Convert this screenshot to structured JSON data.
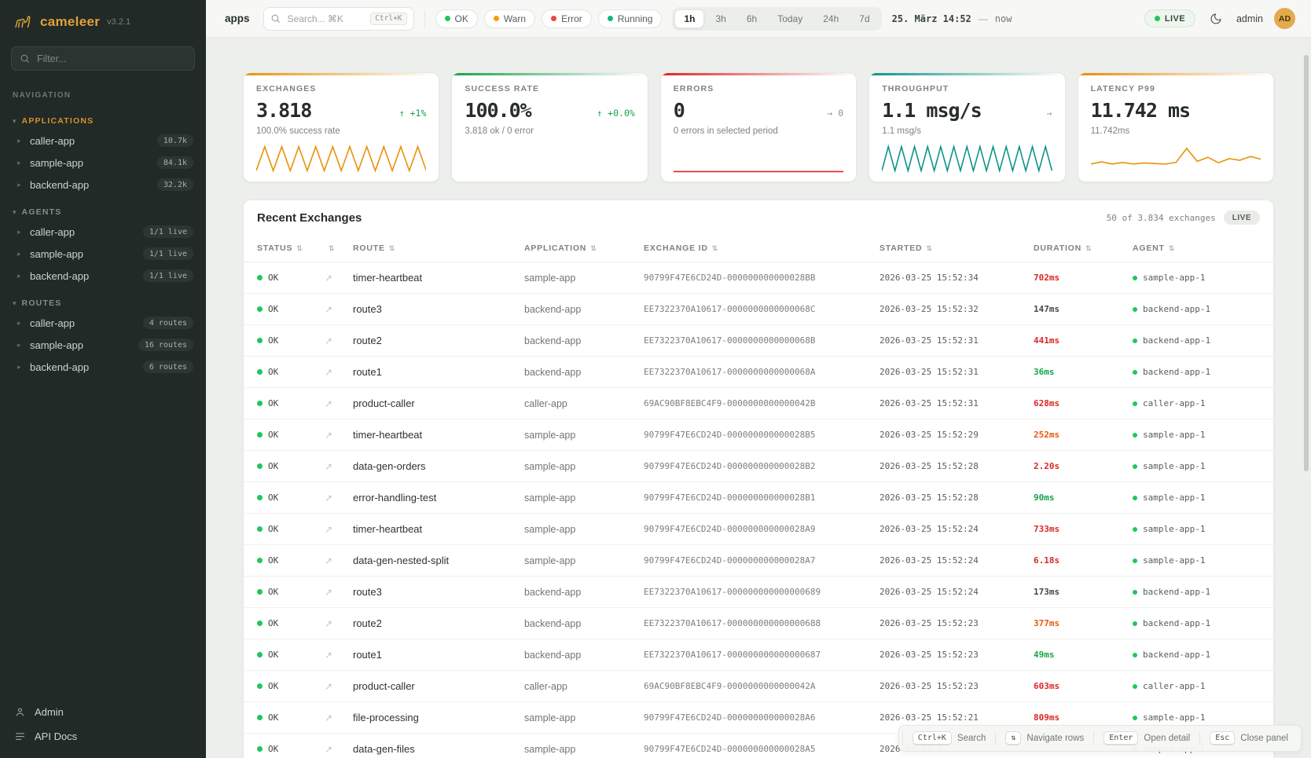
{
  "app": {
    "brand": "cameleer",
    "version": "v3.2.1"
  },
  "icons": {
    "caret_down": "▾",
    "caret_right": "▸",
    "sort": "⇅",
    "open": "↗"
  },
  "sidebar": {
    "filter_placeholder": "Filter...",
    "nav_label": "NAVIGATION",
    "sections": [
      {
        "title": "APPLICATIONS",
        "items": [
          {
            "label": "caller-app",
            "badge": "10.7k"
          },
          {
            "label": "sample-app",
            "badge": "84.1k"
          },
          {
            "label": "backend-app",
            "badge": "32.2k"
          }
        ]
      },
      {
        "title": "AGENTS",
        "items": [
          {
            "label": "caller-app",
            "badge": "1/1 live"
          },
          {
            "label": "sample-app",
            "badge": "1/1 live"
          },
          {
            "label": "backend-app",
            "badge": "1/1 live"
          }
        ]
      },
      {
        "title": "ROUTES",
        "items": [
          {
            "label": "caller-app",
            "badge": "4 routes"
          },
          {
            "label": "sample-app",
            "badge": "16 routes"
          },
          {
            "label": "backend-app",
            "badge": "6 routes"
          }
        ]
      }
    ],
    "footer": [
      {
        "label": "Admin"
      },
      {
        "label": "API Docs"
      }
    ]
  },
  "topbar": {
    "page_label": "apps",
    "search_placeholder": "Search... ⌘K",
    "search_kbd": "Ctrl+K",
    "status_chips": [
      {
        "label": "OK",
        "color": "#22c55e"
      },
      {
        "label": "Warn",
        "color": "#f59e0b"
      },
      {
        "label": "Error",
        "color": "#ef4444"
      },
      {
        "label": "Running",
        "color": "#10b981"
      }
    ],
    "time_ranges": [
      {
        "label": "1h",
        "active": true
      },
      {
        "label": "3h"
      },
      {
        "label": "6h"
      },
      {
        "label": "Today"
      },
      {
        "label": "24h"
      },
      {
        "label": "7d"
      }
    ],
    "date_label": "25. März 14:52",
    "date_sep": "—",
    "date_now": "now",
    "live_label": "LIVE",
    "user": "admin",
    "avatar": "AD"
  },
  "cards": [
    {
      "title": "EXCHANGES",
      "value": "3.818",
      "trend": "↑ +1%",
      "trend_color": "#16a34a",
      "subtitle": "100.0% success rate",
      "accent": "#e8930c",
      "spark": {
        "color": "#e8930c",
        "values": [
          0.05,
          0.95,
          0.05,
          0.95,
          0.05,
          0.95,
          0.05,
          0.95,
          0.05,
          0.95,
          0.05,
          0.95,
          0.05,
          0.95,
          0.05,
          0.95,
          0.05,
          0.95,
          0.05,
          0.95,
          0.05
        ]
      }
    },
    {
      "title": "SUCCESS RATE",
      "value": "100.0%",
      "trend": "↑ +0.0%",
      "trend_color": "#16a34a",
      "subtitle": "3.818 ok / 0 error",
      "accent": "#16a34a",
      "spark": null
    },
    {
      "title": "ERRORS",
      "value": "0",
      "trend": "→ 0",
      "trend_color": "#8a948d",
      "subtitle": "0 errors in selected period",
      "accent": "#dc2626",
      "spark": {
        "color": "#dc2626",
        "values": [
          0.02,
          0.02
        ]
      }
    },
    {
      "title": "THROUGHPUT",
      "value": "1.1 msg/s",
      "trend": "→",
      "trend_color": "#8a948d",
      "subtitle": "1.1 msg/s",
      "accent": "#0d9488",
      "spark": {
        "color": "#0d9488",
        "values": [
          0.05,
          0.95,
          0.05,
          0.95,
          0.05,
          0.95,
          0.05,
          0.95,
          0.05,
          0.95,
          0.05,
          0.95,
          0.05,
          0.95,
          0.05,
          0.95,
          0.05,
          0.95,
          0.05,
          0.95,
          0.05,
          0.95,
          0.05,
          0.95,
          0.05,
          0.95,
          0.05
        ]
      }
    },
    {
      "title": "LATENCY P99",
      "value": "11.742 ms",
      "trend": "",
      "subtitle": "11.742ms",
      "accent": "#ea8c0c",
      "spark": {
        "color": "#e8930c",
        "values": [
          0.3,
          0.38,
          0.3,
          0.36,
          0.3,
          0.34,
          0.32,
          0.3,
          0.36,
          0.88,
          0.4,
          0.55,
          0.35,
          0.5,
          0.44,
          0.58,
          0.48
        ]
      }
    }
  ],
  "table": {
    "title": "Recent Exchanges",
    "count_label": "50 of 3.834 exchanges",
    "live_label": "LIVE",
    "columns": [
      "STATUS",
      "",
      "ROUTE",
      "APPLICATION",
      "EXCHANGE ID",
      "STARTED",
      "DURATION",
      "AGENT"
    ],
    "rows": [
      {
        "status": "OK",
        "route": "timer-heartbeat",
        "application": "sample-app",
        "exchange_id": "90799F47E6CD24D-000000000000028BB",
        "started": "2026-03-25 15:52:34",
        "duration": "702ms",
        "duration_color": "#dc2626",
        "agent": "sample-app-1"
      },
      {
        "status": "OK",
        "route": "route3",
        "application": "backend-app",
        "exchange_id": "EE7322370A10617-0000000000000068C",
        "started": "2026-03-25 15:52:32",
        "duration": "147ms",
        "duration_color": "#414b45",
        "agent": "backend-app-1"
      },
      {
        "status": "OK",
        "route": "route2",
        "application": "backend-app",
        "exchange_id": "EE7322370A10617-0000000000000068B",
        "started": "2026-03-25 15:52:31",
        "duration": "441ms",
        "duration_color": "#dc2626",
        "agent": "backend-app-1"
      },
      {
        "status": "OK",
        "route": "route1",
        "application": "backend-app",
        "exchange_id": "EE7322370A10617-0000000000000068A",
        "started": "2026-03-25 15:52:31",
        "duration": "36ms",
        "duration_color": "#16a34a",
        "agent": "backend-app-1"
      },
      {
        "status": "OK",
        "route": "product-caller",
        "application": "caller-app",
        "exchange_id": "69AC90BF8EBC4F9-0000000000000042B",
        "started": "2026-03-25 15:52:31",
        "duration": "628ms",
        "duration_color": "#dc2626",
        "agent": "caller-app-1"
      },
      {
        "status": "OK",
        "route": "timer-heartbeat",
        "application": "sample-app",
        "exchange_id": "90799F47E6CD24D-000000000000028B5",
        "started": "2026-03-25 15:52:29",
        "duration": "252ms",
        "duration_color": "#ea580c",
        "agent": "sample-app-1"
      },
      {
        "status": "OK",
        "route": "data-gen-orders",
        "application": "sample-app",
        "exchange_id": "90799F47E6CD24D-000000000000028B2",
        "started": "2026-03-25 15:52:28",
        "duration": "2.20s",
        "duration_color": "#dc2626",
        "agent": "sample-app-1"
      },
      {
        "status": "OK",
        "route": "error-handling-test",
        "application": "sample-app",
        "exchange_id": "90799F47E6CD24D-000000000000028B1",
        "started": "2026-03-25 15:52:28",
        "duration": "90ms",
        "duration_color": "#16a34a",
        "agent": "sample-app-1"
      },
      {
        "status": "OK",
        "route": "timer-heartbeat",
        "application": "sample-app",
        "exchange_id": "90799F47E6CD24D-000000000000028A9",
        "started": "2026-03-25 15:52:24",
        "duration": "733ms",
        "duration_color": "#dc2626",
        "agent": "sample-app-1"
      },
      {
        "status": "OK",
        "route": "data-gen-nested-split",
        "application": "sample-app",
        "exchange_id": "90799F47E6CD24D-000000000000028A7",
        "started": "2026-03-25 15:52:24",
        "duration": "6.18s",
        "duration_color": "#dc2626",
        "agent": "sample-app-1"
      },
      {
        "status": "OK",
        "route": "route3",
        "application": "backend-app",
        "exchange_id": "EE7322370A10617-000000000000000689",
        "started": "2026-03-25 15:52:24",
        "duration": "173ms",
        "duration_color": "#414b45",
        "agent": "backend-app-1"
      },
      {
        "status": "OK",
        "route": "route2",
        "application": "backend-app",
        "exchange_id": "EE7322370A10617-000000000000000688",
        "started": "2026-03-25 15:52:23",
        "duration": "377ms",
        "duration_color": "#ea580c",
        "agent": "backend-app-1"
      },
      {
        "status": "OK",
        "route": "route1",
        "application": "backend-app",
        "exchange_id": "EE7322370A10617-000000000000000687",
        "started": "2026-03-25 15:52:23",
        "duration": "49ms",
        "duration_color": "#16a34a",
        "agent": "backend-app-1"
      },
      {
        "status": "OK",
        "route": "product-caller",
        "application": "caller-app",
        "exchange_id": "69AC90BF8EBC4F9-0000000000000042A",
        "started": "2026-03-25 15:52:23",
        "duration": "603ms",
        "duration_color": "#dc2626",
        "agent": "caller-app-1"
      },
      {
        "status": "OK",
        "route": "file-processing",
        "application": "sample-app",
        "exchange_id": "90799F47E6CD24D-000000000000028A6",
        "started": "2026-03-25 15:52:21",
        "duration": "809ms",
        "duration_color": "#dc2626",
        "agent": "sample-app-1"
      },
      {
        "status": "OK",
        "route": "data-gen-files",
        "application": "sample-app",
        "exchange_id": "90799F47E6CD24D-000000000000028A5",
        "started": "2026-03-25 1",
        "duration": "",
        "agent": "sample-app-1"
      }
    ]
  },
  "hints": [
    {
      "key": "Ctrl+K",
      "label": "Search"
    },
    {
      "key": "⇅",
      "label": "Navigate rows"
    },
    {
      "key": "Enter",
      "label": "Open detail"
    },
    {
      "key": "Esc",
      "label": "Close panel"
    }
  ]
}
